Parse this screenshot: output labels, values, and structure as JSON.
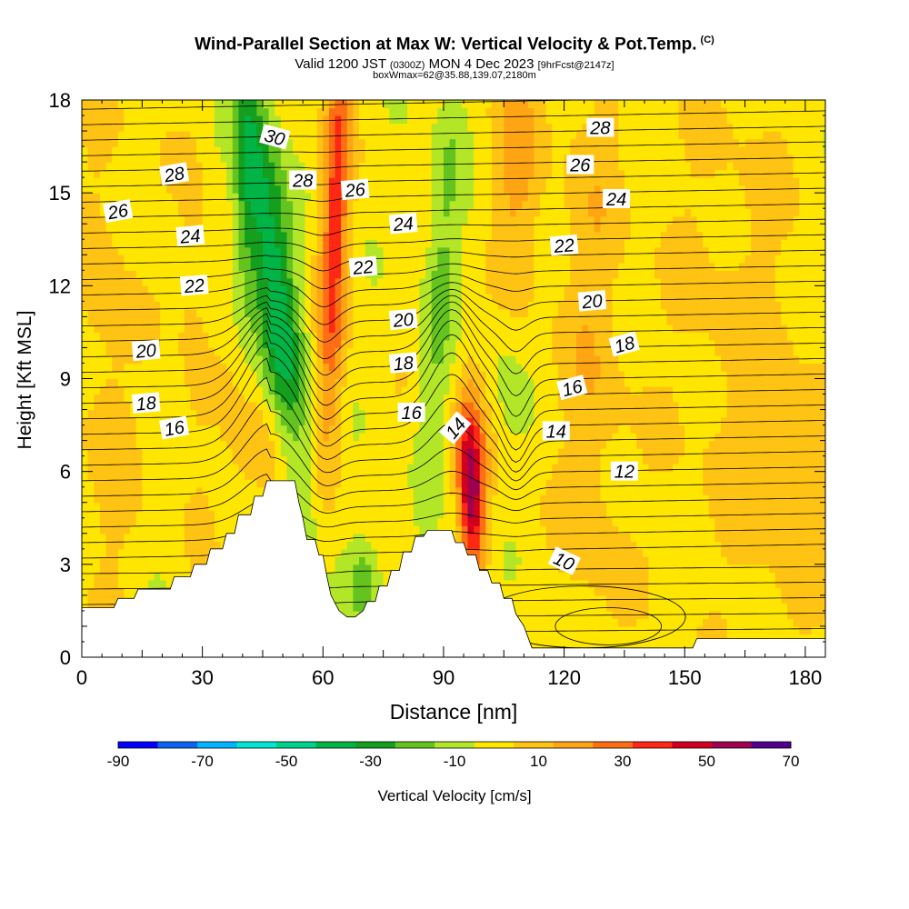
{
  "header": {
    "title": "Wind-Parallel Section at Max W: Vertical Velocity & Pot.Temp.",
    "copyright": "(C)",
    "valid_prefix": "Valid 1200 JST",
    "utc": "(0300Z)",
    "valid_date": "MON 4 Dec 2023",
    "forecast": "[9hrFcst@2147z]",
    "box_info": "boxWmax=62@35.88,139.07,2180m"
  },
  "chart_data": {
    "type": "heatmap",
    "xlabel": "Distance [nm]",
    "ylabel": "Height [Kft MSL]",
    "xlim": [
      0,
      185
    ],
    "ylim": [
      0,
      18
    ],
    "x_ticks": [
      0,
      30,
      60,
      90,
      120,
      150,
      180
    ],
    "y_ticks": [
      0,
      3,
      6,
      9,
      12,
      15,
      18
    ],
    "grid": false,
    "colorbar": {
      "label": "Vertical Velocity [cm/s]",
      "ticks": [
        -90,
        -70,
        -50,
        -30,
        -10,
        10,
        30,
        50,
        70
      ],
      "bounds": [
        -90,
        -80,
        -70,
        -60,
        -50,
        -40,
        -30,
        -20,
        -10,
        0,
        10,
        20,
        30,
        40,
        50,
        60,
        70
      ],
      "colors": [
        "#0000ff",
        "#0a64f0",
        "#00b4ff",
        "#00e6d2",
        "#00d28c",
        "#00b446",
        "#14a01e",
        "#64c31e",
        "#b4e628",
        "#ffe600",
        "#ffc314",
        "#ffa514",
        "#ff6e14",
        "#ff2814",
        "#d2001e",
        "#a00050",
        "#50008c"
      ]
    },
    "terrain_kft": [
      [
        0,
        1.6
      ],
      [
        8,
        1.6
      ],
      [
        9,
        1.9
      ],
      [
        13,
        1.9
      ],
      [
        14,
        2.2
      ],
      [
        22,
        2.2
      ],
      [
        23,
        2.6
      ],
      [
        27,
        2.6
      ],
      [
        28,
        3.0
      ],
      [
        31,
        3.0
      ],
      [
        32,
        3.5
      ],
      [
        35,
        3.5
      ],
      [
        36,
        4.0
      ],
      [
        38,
        4.0
      ],
      [
        39,
        4.6
      ],
      [
        42,
        4.6
      ],
      [
        43,
        5.2
      ],
      [
        45,
        5.2
      ],
      [
        46,
        5.7
      ],
      [
        53,
        5.7
      ],
      [
        54,
        5.0
      ],
      [
        55,
        4.5
      ],
      [
        56,
        3.8
      ],
      [
        58,
        3.8
      ],
      [
        59,
        3.3
      ],
      [
        60,
        3.3
      ],
      [
        61,
        2.6
      ],
      [
        62,
        2.0
      ],
      [
        64,
        1.5
      ],
      [
        66,
        1.3
      ],
      [
        68,
        1.3
      ],
      [
        70,
        1.5
      ],
      [
        71,
        1.8
      ],
      [
        73,
        1.8
      ],
      [
        74,
        2.3
      ],
      [
        76,
        2.3
      ],
      [
        77,
        2.8
      ],
      [
        79,
        2.8
      ],
      [
        80,
        3.4
      ],
      [
        82,
        3.4
      ],
      [
        83,
        3.9
      ],
      [
        85,
        3.9
      ],
      [
        86,
        4.1
      ],
      [
        92,
        4.1
      ],
      [
        93,
        3.7
      ],
      [
        95,
        3.7
      ],
      [
        96,
        3.3
      ],
      [
        98,
        3.3
      ],
      [
        99,
        2.8
      ],
      [
        101,
        2.8
      ],
      [
        102,
        2.4
      ],
      [
        104,
        2.4
      ],
      [
        105,
        1.9
      ],
      [
        107,
        1.9
      ],
      [
        108,
        1.4
      ],
      [
        110,
        1.0
      ],
      [
        112,
        0.3
      ],
      [
        152,
        0.3
      ],
      [
        153,
        0.6
      ],
      [
        185,
        0.6
      ]
    ],
    "theta_contours": [
      {
        "label": "10",
        "x": 120,
        "y": 3.1,
        "rot": 25
      },
      {
        "label": "12",
        "x": 135,
        "y": 6.0,
        "rot": 0
      },
      {
        "label": "14",
        "x": 118,
        "y": 7.3,
        "rot": 0
      },
      {
        "label": "14",
        "x": 93,
        "y": 7.4,
        "rot": -50
      },
      {
        "label": "16",
        "x": 122,
        "y": 8.7,
        "rot": -15
      },
      {
        "label": "16",
        "x": 82,
        "y": 7.9,
        "rot": 0
      },
      {
        "label": "16",
        "x": 23,
        "y": 7.4,
        "rot": -10
      },
      {
        "label": "18",
        "x": 135,
        "y": 10.1,
        "rot": -15
      },
      {
        "label": "18",
        "x": 80,
        "y": 9.5,
        "rot": -5
      },
      {
        "label": "18",
        "x": 16,
        "y": 8.2,
        "rot": -5
      },
      {
        "label": "20",
        "x": 127,
        "y": 11.5,
        "rot": -5
      },
      {
        "label": "20",
        "x": 80,
        "y": 10.9,
        "rot": -5
      },
      {
        "label": "20",
        "x": 16,
        "y": 9.9,
        "rot": -5
      },
      {
        "label": "22",
        "x": 120,
        "y": 13.3,
        "rot": -5
      },
      {
        "label": "22",
        "x": 70,
        "y": 12.6,
        "rot": -5
      },
      {
        "label": "22",
        "x": 28,
        "y": 12.0,
        "rot": -5
      },
      {
        "label": "24",
        "x": 133,
        "y": 14.8,
        "rot": 0
      },
      {
        "label": "24",
        "x": 80,
        "y": 14.0,
        "rot": -5
      },
      {
        "label": "24",
        "x": 27,
        "y": 13.6,
        "rot": -5
      },
      {
        "label": "26",
        "x": 124,
        "y": 15.9,
        "rot": 0
      },
      {
        "label": "26",
        "x": 68,
        "y": 15.1,
        "rot": -5
      },
      {
        "label": "26",
        "x": 9,
        "y": 14.4,
        "rot": -10
      },
      {
        "label": "28",
        "x": 129,
        "y": 17.1,
        "rot": 0
      },
      {
        "label": "28",
        "x": 55,
        "y": 15.4,
        "rot": 0
      },
      {
        "label": "28",
        "x": 23,
        "y": 15.6,
        "rot": -10
      },
      {
        "label": "30",
        "x": 48,
        "y": 16.8,
        "rot": 15
      }
    ]
  }
}
